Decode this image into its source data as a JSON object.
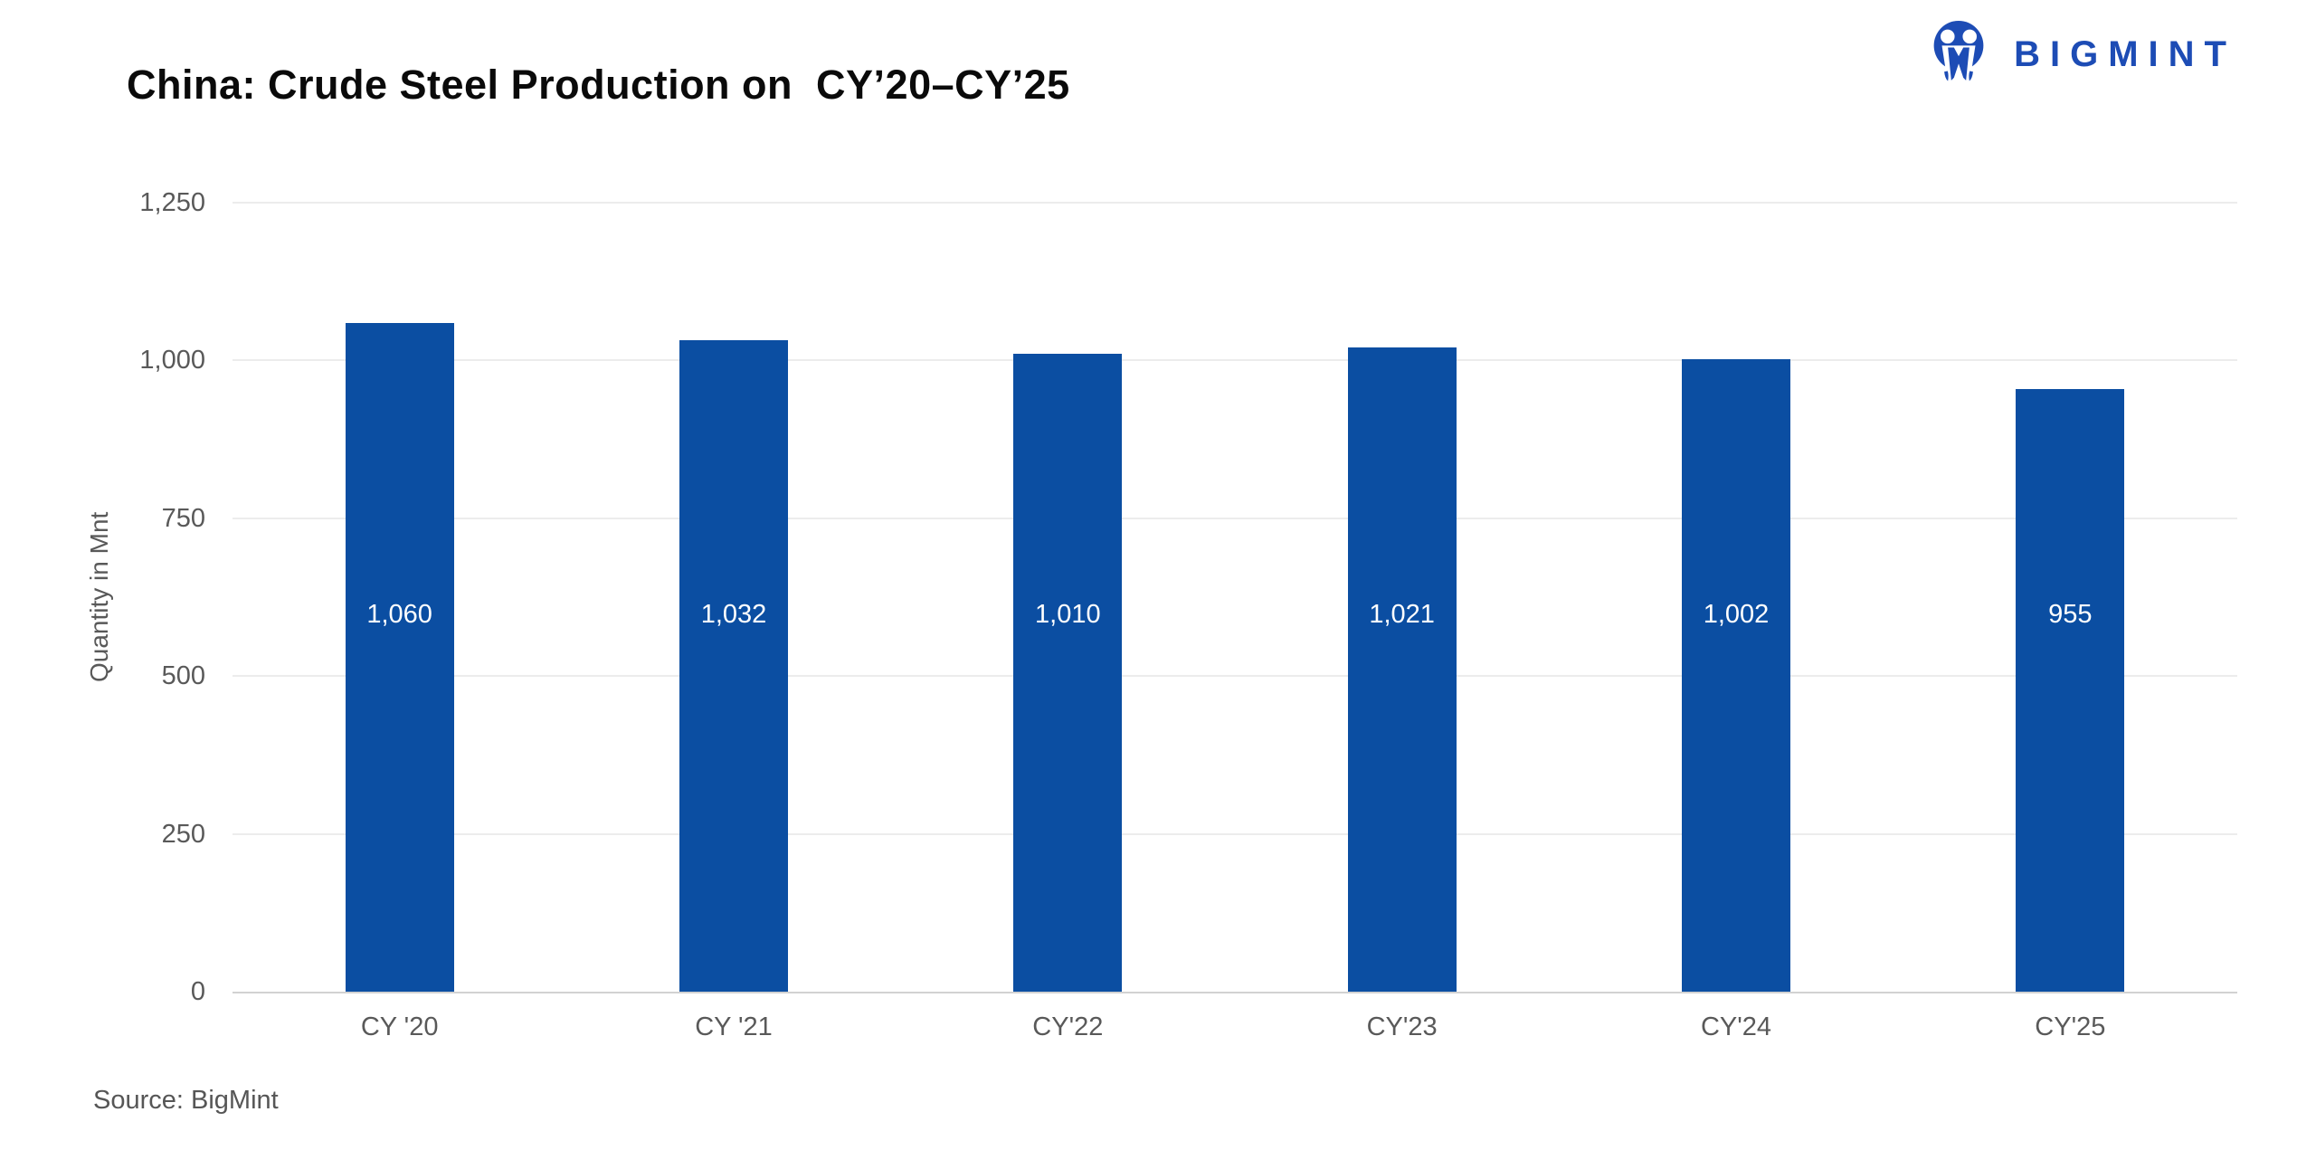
{
  "title": "China: Crude Steel Production on  CY’20–CY’25",
  "logo": {
    "brand": "BIGMINT",
    "icon": "two-people-circle-icon"
  },
  "source": "Source: BigMint",
  "colors": {
    "bar": "#0b4ea2",
    "logo_blue": "#1d4cb5",
    "axis_text": "#595959",
    "value_label": "#ffffff",
    "gridline": "#ececec",
    "baseline": "#d2d2d2"
  },
  "chart_data": {
    "type": "bar",
    "title": "China: Crude Steel Production on CY'20–CY'25",
    "categories": [
      "CY '20",
      "CY '21",
      "CY'22",
      "CY'23",
      "CY'24",
      "CY'25"
    ],
    "values": [
      1060,
      1032,
      1010,
      1021,
      1002,
      955
    ],
    "value_labels": [
      "1,060",
      "1,032",
      "1,010",
      "1,021",
      "1,002",
      "955"
    ],
    "xlabel": "",
    "ylabel": "Quantity in Mnt",
    "ylim": [
      0,
      1250
    ],
    "yticks": [
      0,
      250,
      500,
      750,
      1000,
      1250
    ],
    "ytick_labels": [
      "0",
      "250",
      "500",
      "750",
      "1,000",
      "1,250"
    ],
    "grid": "horizontal",
    "legend": "none",
    "unit": "Mnt"
  }
}
